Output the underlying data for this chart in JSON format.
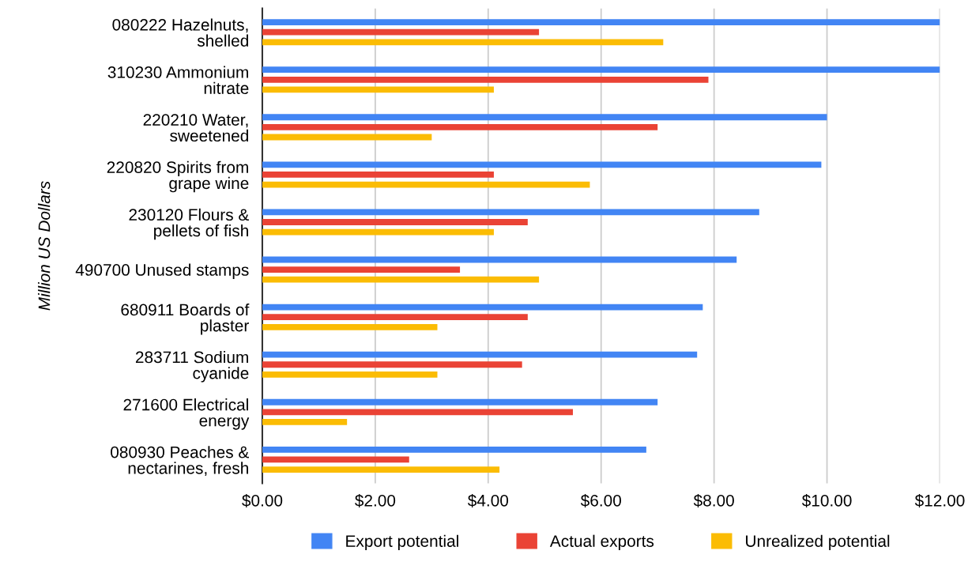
{
  "chart_data": {
    "type": "bar",
    "orientation": "horizontal",
    "ylabel": "Million US Dollars",
    "categories": [
      "080222 Hazelnuts, shelled",
      "310230 Ammonium nitrate",
      "220210 Water, sweetened",
      "220820 Spirits from grape wine",
      "230120 Flours & pellets of fish",
      "490700 Unused stamps",
      "680911 Boards of plaster",
      "283711 Sodium cyanide",
      "271600 Electrical energy",
      "080930 Peaches & nectarines, fresh"
    ],
    "series": [
      {
        "name": "Export potential",
        "color": "#4285f4",
        "values": [
          12.0,
          12.0,
          10.0,
          9.9,
          8.8,
          8.4,
          7.8,
          7.7,
          7.0,
          6.8
        ]
      },
      {
        "name": "Actual exports",
        "color": "#ea4335",
        "values": [
          4.9,
          7.9,
          7.0,
          4.1,
          4.7,
          3.5,
          4.7,
          4.6,
          5.5,
          2.6
        ]
      },
      {
        "name": "Unrealized potential",
        "color": "#fbbc04",
        "values": [
          7.1,
          4.1,
          3.0,
          5.8,
          4.1,
          4.9,
          3.1,
          3.1,
          1.5,
          4.2
        ]
      }
    ],
    "xlim": [
      0,
      12
    ],
    "xticks": [
      {
        "value": 0,
        "label": "$0.00"
      },
      {
        "value": 2,
        "label": "$2.00"
      },
      {
        "value": 4,
        "label": "$4.00"
      },
      {
        "value": 6,
        "label": "$6.00"
      },
      {
        "value": 8,
        "label": "$8.00"
      },
      {
        "value": 10,
        "label": "$10.00"
      },
      {
        "value": 12,
        "label": "$12.00"
      }
    ],
    "grid": "x",
    "legend": "bottom"
  }
}
